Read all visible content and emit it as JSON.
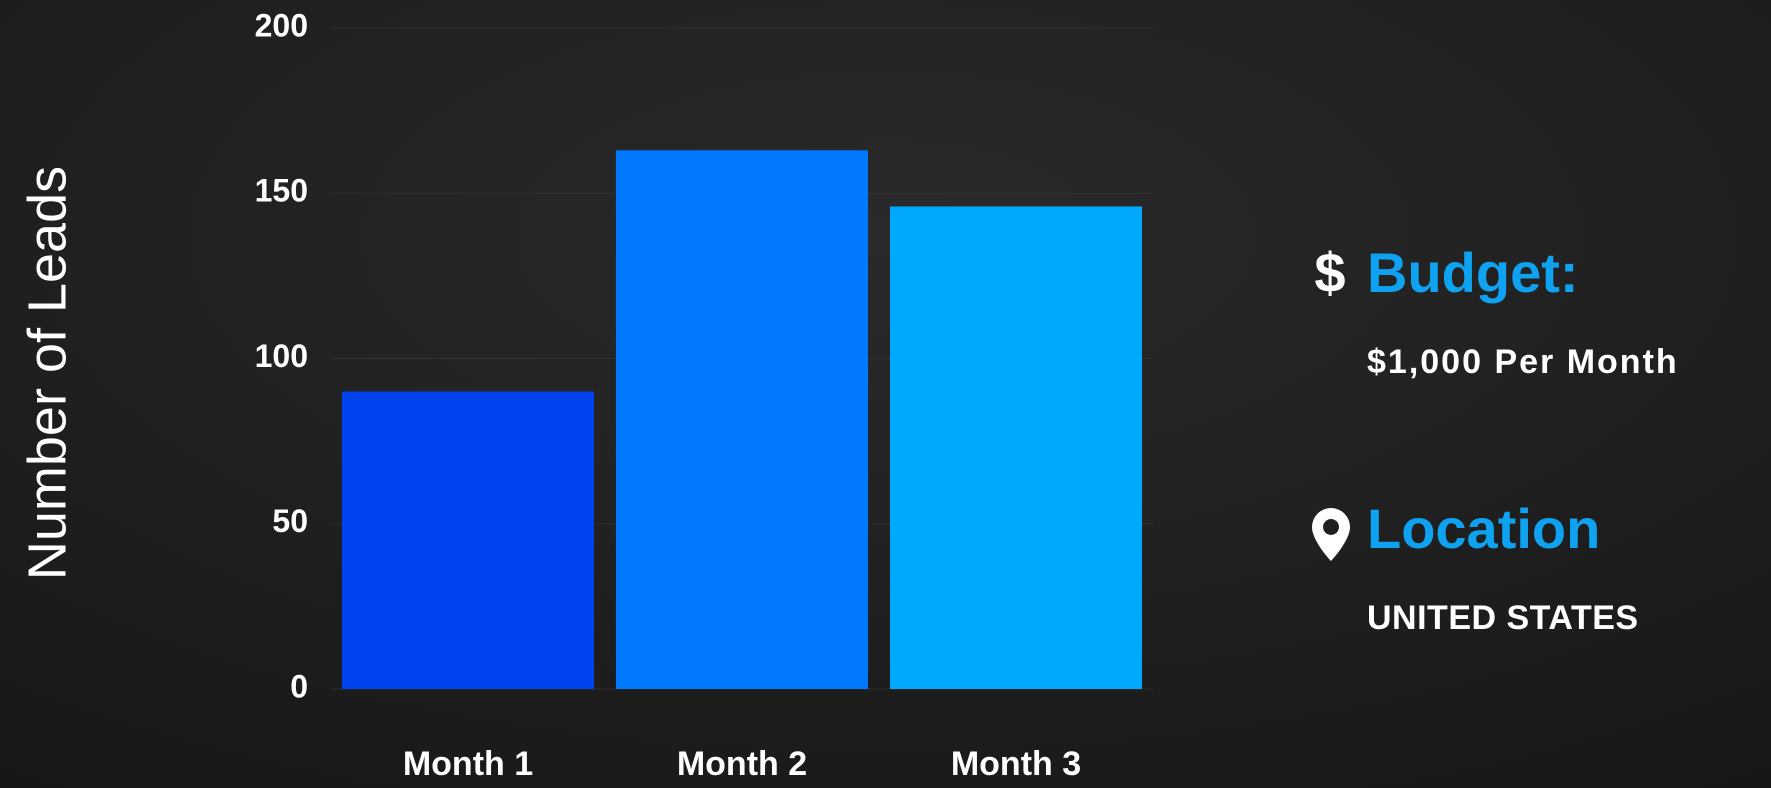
{
  "chart_data": {
    "type": "bar",
    "y_label": "Number of Leads",
    "categories": [
      "Month 1",
      "Month 2",
      "Month 3"
    ],
    "values": [
      90,
      163,
      146
    ],
    "colors": [
      "#0142ef",
      "#0179fe",
      "#01a9fe"
    ],
    "ylim": [
      0,
      200
    ],
    "yticks": [
      0,
      50,
      100,
      150,
      200
    ],
    "grid": true
  },
  "info": {
    "budget_label": "Budget:",
    "budget_value": "$1,000 Per Month",
    "location_label": "Location",
    "location_value": "UNITED STATES"
  }
}
